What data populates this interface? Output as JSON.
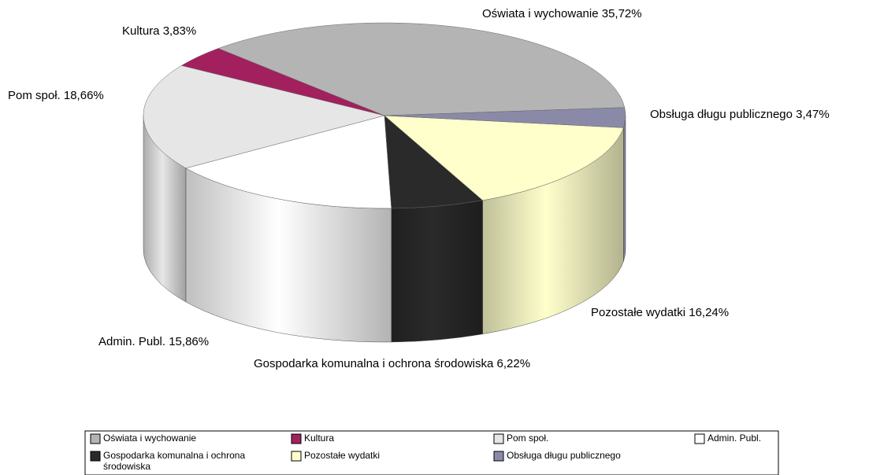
{
  "chart_data": {
    "type": "pie3d",
    "categories": [
      "Oświata i wychowanie",
      "Kultura",
      "Pom społ.",
      "Admin. Publ.",
      "Gospodarka komunalna i ochrona środowiska",
      "Pozostałe wydatki",
      "Obsługa długu publicznego"
    ],
    "values": [
      35.72,
      3.83,
      18.66,
      15.86,
      6.22,
      16.24,
      3.47
    ],
    "value_labels": [
      "35,72%",
      "3,83%",
      "18,66%",
      "15,86%",
      "6,22%",
      "16,24%",
      "3,47%"
    ],
    "colors": [
      "#b4b4b4",
      "#a3205f",
      "#e6e6e6",
      "#ffffff",
      "#2a2a2a",
      "#ffffcc",
      "#8a8aa8"
    ],
    "legend": "bottom"
  }
}
